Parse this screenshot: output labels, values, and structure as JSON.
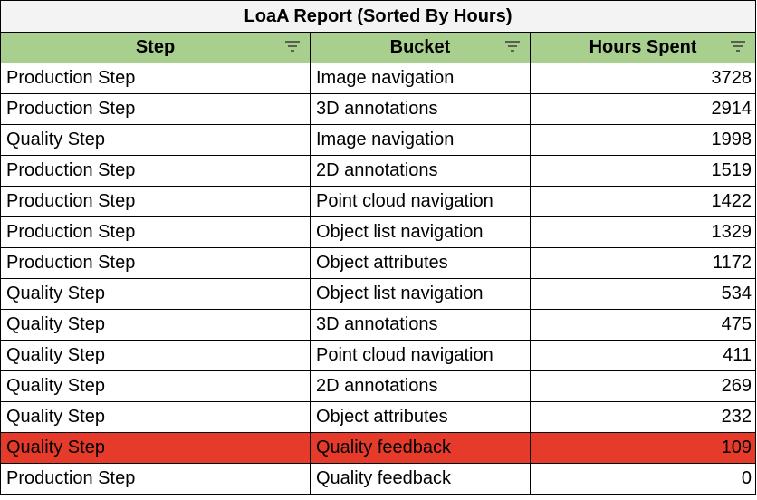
{
  "title": "LoaA Report (Sorted By Hours)",
  "columns": [
    {
      "label": "Step",
      "icon": "filter-icon"
    },
    {
      "label": "Bucket",
      "icon": "filter-icon"
    },
    {
      "label": "Hours Spent",
      "icon": "filter-icon"
    }
  ],
  "rows": [
    {
      "step": "Production Step",
      "bucket": "Image navigation",
      "hours": "3728"
    },
    {
      "step": "Production Step",
      "bucket": "3D annotations",
      "hours": "2914"
    },
    {
      "step": "Quality Step",
      "bucket": "Image navigation",
      "hours": "1998"
    },
    {
      "step": "Production Step",
      "bucket": "2D annotations",
      "hours": "1519"
    },
    {
      "step": "Production Step",
      "bucket": "Point cloud navigation",
      "hours": "1422"
    },
    {
      "step": "Production Step",
      "bucket": "Object list navigation",
      "hours": "1329"
    },
    {
      "step": "Production Step",
      "bucket": "Object attributes",
      "hours": "1172"
    },
    {
      "step": "Quality Step",
      "bucket": "Object list navigation",
      "hours": "534"
    },
    {
      "step": "Quality Step",
      "bucket": "3D annotations",
      "hours": "475"
    },
    {
      "step": "Quality Step",
      "bucket": "Point cloud navigation",
      "hours": "411"
    },
    {
      "step": "Quality Step",
      "bucket": "2D annotations",
      "hours": "269"
    },
    {
      "step": "Quality Step",
      "bucket": "Object attributes",
      "hours": "232"
    },
    {
      "step": "Quality Step",
      "bucket": "Quality feedback",
      "hours": "109",
      "highlight": true
    },
    {
      "step": "Production Step",
      "bucket": "Quality feedback",
      "hours": "0"
    }
  ],
  "colors": {
    "header_bg": "#a9cf8f",
    "title_bg": "#f3f3f3",
    "highlight_bg": "#e63b2b",
    "border": "#000000"
  }
}
